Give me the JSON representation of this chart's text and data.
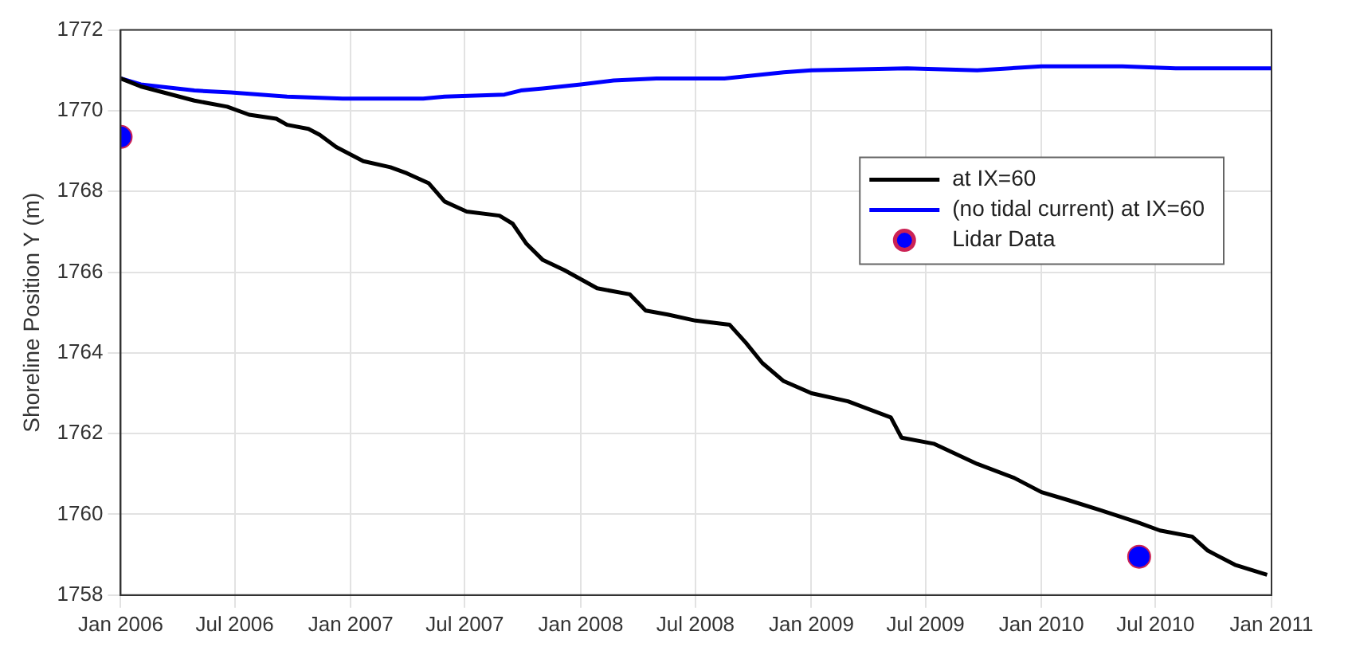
{
  "chart_data": {
    "type": "line",
    "ylabel": "Shoreline Position Y (m)",
    "xlim": [
      "2006-01-01",
      "2011-01-01"
    ],
    "xticks": [
      {
        "value": "2006-01-01",
        "label": "Jan 2006"
      },
      {
        "value": "2006-07-01",
        "label": "Jul 2006"
      },
      {
        "value": "2007-01-01",
        "label": "Jan 2007"
      },
      {
        "value": "2007-07-01",
        "label": "Jul 2007"
      },
      {
        "value": "2008-01-01",
        "label": "Jan 2008"
      },
      {
        "value": "2008-07-01",
        "label": "Jul 2008"
      },
      {
        "value": "2009-01-01",
        "label": "Jan 2009"
      },
      {
        "value": "2009-07-01",
        "label": "Jul 2009"
      },
      {
        "value": "2010-01-01",
        "label": "Jan 2010"
      },
      {
        "value": "2010-07-01",
        "label": "Jul 2010"
      },
      {
        "value": "2011-01-01",
        "label": "Jan 2011"
      }
    ],
    "ylim": [
      1758,
      1772
    ],
    "yticks": [
      1758,
      1760,
      1762,
      1764,
      1766,
      1768,
      1770,
      1772
    ],
    "grid": true,
    "legend": "right",
    "marker": "none",
    "line_style": "solid",
    "series": [
      {
        "name": "at IX=60",
        "color": "#000000",
        "x": [
          "2006-01-01",
          "2006-02-02",
          "2006-04-28",
          "2006-06-19",
          "2006-07-24",
          "2006-09-05",
          "2006-09-22",
          "2006-10-26",
          "2006-11-13",
          "2006-12-09",
          "2007-01-21",
          "2007-03-05",
          "2007-03-31",
          "2007-05-05",
          "2007-05-30",
          "2007-07-04",
          "2007-08-25",
          "2007-09-15",
          "2007-10-07",
          "2007-11-02",
          "2007-12-06",
          "2008-01-27",
          "2008-03-19",
          "2008-04-13",
          "2008-05-18",
          "2008-07-01",
          "2008-08-24",
          "2008-09-19",
          "2008-10-15",
          "2008-11-18",
          "2009-01-01",
          "2009-02-28",
          "2009-05-07",
          "2009-05-24",
          "2009-07-14",
          "2009-09-21",
          "2009-11-19",
          "2010-01-01",
          "2010-02-13",
          "2010-04-05",
          "2010-06-03",
          "2010-07-08",
          "2010-08-28",
          "2010-09-22",
          "2010-11-04",
          "2010-12-25"
        ],
        "values": [
          1770.8,
          1770.6,
          1770.25,
          1770.1,
          1769.9,
          1769.8,
          1769.65,
          1769.55,
          1769.4,
          1769.1,
          1768.75,
          1768.6,
          1768.45,
          1768.2,
          1767.75,
          1767.5,
          1767.4,
          1767.2,
          1766.7,
          1766.3,
          1766.05,
          1765.6,
          1765.45,
          1765.05,
          1764.95,
          1764.8,
          1764.7,
          1764.25,
          1763.75,
          1763.3,
          1763.0,
          1762.8,
          1762.4,
          1761.9,
          1761.75,
          1761.25,
          1760.9,
          1760.55,
          1760.35,
          1760.1,
          1759.8,
          1759.6,
          1759.45,
          1759.1,
          1758.75,
          1758.5
        ]
      },
      {
        "name": "(no tidal current) at IX=60",
        "color": "#0000ff",
        "x": [
          "2006-01-01",
          "2006-02-02",
          "2006-04-28",
          "2006-06-25",
          "2006-09-22",
          "2006-12-19",
          "2007-04-26",
          "2007-05-30",
          "2007-09-02",
          "2007-09-28",
          "2007-11-02",
          "2008-01-01",
          "2008-02-22",
          "2008-04-30",
          "2008-08-16",
          "2008-11-18",
          "2009-01-01",
          "2009-06-02",
          "2009-09-21",
          "2010-01-01",
          "2010-05-09",
          "2010-08-02",
          "2011-01-01"
        ],
        "values": [
          1770.8,
          1770.65,
          1770.5,
          1770.45,
          1770.35,
          1770.3,
          1770.3,
          1770.35,
          1770.4,
          1770.5,
          1770.55,
          1770.65,
          1770.75,
          1770.8,
          1770.8,
          1770.95,
          1771.0,
          1771.05,
          1771.0,
          1771.1,
          1771.1,
          1771.05,
          1771.05
        ]
      },
      {
        "name": "Lidar Data",
        "color": "#0000ff",
        "type": "scatter",
        "marker": "circle",
        "x": [
          "2006-01-01",
          "2010-06-05"
        ],
        "values": [
          1769.35,
          1758.95
        ]
      }
    ]
  }
}
